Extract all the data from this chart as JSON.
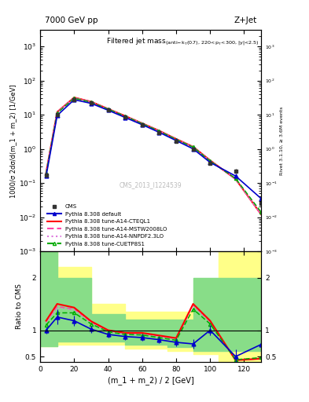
{
  "title_top": "7000 GeV pp",
  "title_right": "Z+Jet",
  "panel_title": "Filtered jet mass",
  "cms_label": "CMS_2013_I1224539",
  "xlabel": "(m_1 + m_2) / 2 [GeV]",
  "ylabel_main": "1000/σ 2dσ/d(m_1 + m_2) [1/GeV]",
  "ylabel_ratio": "Ratio to CMS",
  "ylabel_right_main": "Rivet 3.1.10, ≥ 3.6M events",
  "x_data": [
    3.5,
    10,
    20,
    30,
    40,
    50,
    60,
    70,
    80,
    90,
    100,
    115,
    130
  ],
  "cms_y": [
    0.17,
    10.0,
    28.0,
    22.0,
    14.0,
    8.5,
    5.0,
    3.0,
    1.7,
    1.0,
    0.38,
    0.22,
    0.025
  ],
  "cms_yerr": [
    0.025,
    1.2,
    2.5,
    2.0,
    1.2,
    0.7,
    0.4,
    0.25,
    0.18,
    0.1,
    0.045,
    0.035,
    0.004
  ],
  "pythia_default_y": [
    0.16,
    9.5,
    27.5,
    21.5,
    13.5,
    8.3,
    5.1,
    3.05,
    1.75,
    1.0,
    0.4,
    0.16,
    0.035
  ],
  "pythia_cteq_y": [
    0.2,
    12.0,
    32.0,
    24.0,
    14.8,
    9.2,
    5.6,
    3.4,
    1.95,
    1.15,
    0.46,
    0.13,
    0.012
  ],
  "pythia_mstw_y": [
    0.2,
    11.8,
    31.5,
    23.8,
    14.7,
    9.1,
    5.55,
    3.38,
    1.93,
    1.14,
    0.45,
    0.13,
    0.012
  ],
  "pythia_nnpdf_y": [
    0.2,
    11.8,
    31.5,
    23.8,
    14.7,
    9.1,
    5.55,
    3.38,
    1.93,
    1.14,
    0.45,
    0.13,
    0.012
  ],
  "pythia_cuetp_y": [
    0.19,
    11.2,
    30.5,
    23.2,
    14.5,
    9.0,
    5.45,
    3.32,
    1.89,
    1.12,
    0.44,
    0.135,
    0.014
  ],
  "ratio_default": [
    1.0,
    1.25,
    1.18,
    1.02,
    0.92,
    0.88,
    0.86,
    0.82,
    0.77,
    0.74,
    1.0,
    0.5,
    0.73
  ],
  "ratio_cteq": [
    1.18,
    1.5,
    1.43,
    1.17,
    1.0,
    0.95,
    0.95,
    0.9,
    0.85,
    1.5,
    1.18,
    0.43,
    0.46
  ],
  "ratio_mstw": [
    1.16,
    1.45,
    1.4,
    1.15,
    0.99,
    0.94,
    0.94,
    0.89,
    0.84,
    1.48,
    1.16,
    0.43,
    0.46
  ],
  "ratio_nnpdf": [
    1.15,
    1.42,
    1.39,
    1.15,
    0.98,
    0.93,
    0.93,
    0.88,
    0.83,
    1.47,
    1.16,
    0.43,
    0.46
  ],
  "ratio_cuetp": [
    1.1,
    1.33,
    1.33,
    1.12,
    0.97,
    0.92,
    0.91,
    0.86,
    0.81,
    1.4,
    1.12,
    0.44,
    0.48
  ],
  "ratio_default_err": [
    0.06,
    0.14,
    0.09,
    0.07,
    0.06,
    0.06,
    0.06,
    0.06,
    0.07,
    0.09,
    0.1,
    0.13,
    0.19
  ],
  "color_cms": "#333333",
  "color_default": "#0000cc",
  "color_cteq": "#ff0000",
  "color_mstw": "#ff44aa",
  "color_nnpdf": "#dd77dd",
  "color_cuetp": "#00aa00",
  "ylim_main": [
    0.001,
    3000.0
  ],
  "ylim_ratio": [
    0.4,
    2.5
  ],
  "xlim": [
    0,
    130
  ]
}
